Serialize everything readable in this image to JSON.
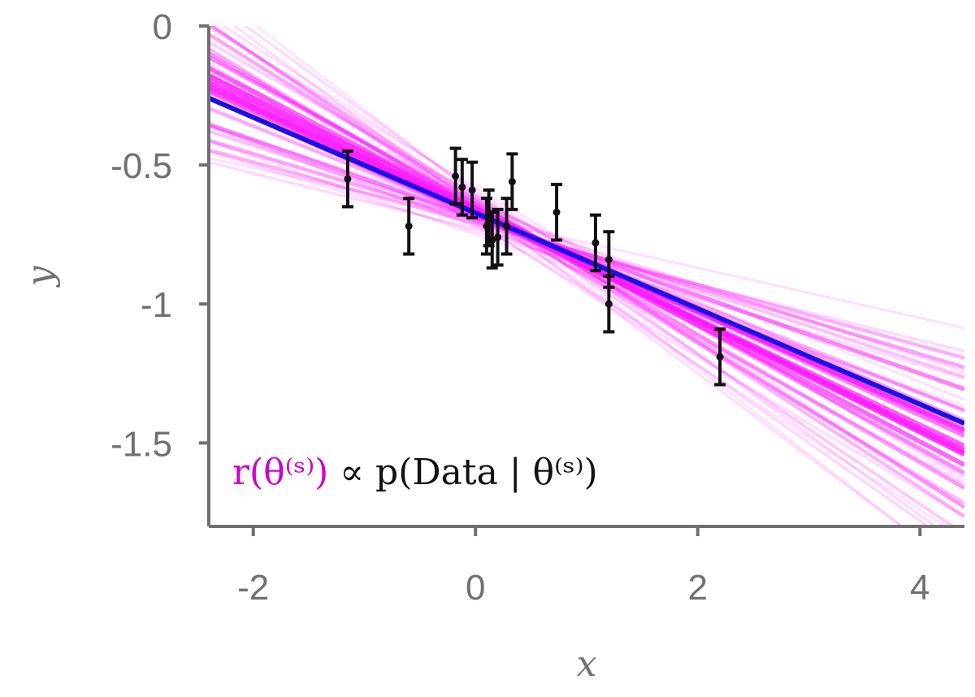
{
  "chart_data": {
    "type": "scatter",
    "xlabel": "x",
    "ylabel": "y",
    "xlim": [
      -2.4,
      4.4
    ],
    "ylim": [
      -1.8,
      0
    ],
    "xticks": [
      -2,
      0,
      2,
      4
    ],
    "yticks": [
      0,
      -0.5,
      -1,
      -1.5
    ],
    "xtick_labels": [
      "-2",
      "0",
      "2",
      "4"
    ],
    "ytick_labels": [
      "0",
      "-0.5",
      "-1",
      "-1.5"
    ],
    "grid": false,
    "annotation": {
      "r_part": "r(θ⁽ˢ⁾)",
      "rest_part": " ∝ p(Data | θ⁽ˢ⁾)"
    },
    "points": [
      {
        "x": -1.15,
        "y": -0.55,
        "err": 0.1
      },
      {
        "x": -0.6,
        "y": -0.72,
        "err": 0.1
      },
      {
        "x": -0.18,
        "y": -0.54,
        "err": 0.1
      },
      {
        "x": -0.12,
        "y": -0.58,
        "err": 0.1
      },
      {
        "x": -0.03,
        "y": -0.59,
        "err": 0.1
      },
      {
        "x": 0.1,
        "y": -0.72,
        "err": 0.1
      },
      {
        "x": 0.12,
        "y": -0.69,
        "err": 0.1
      },
      {
        "x": 0.15,
        "y": -0.77,
        "err": 0.1
      },
      {
        "x": 0.2,
        "y": -0.76,
        "err": 0.1
      },
      {
        "x": 0.28,
        "y": -0.72,
        "err": 0.1
      },
      {
        "x": 0.33,
        "y": -0.56,
        "err": 0.1
      },
      {
        "x": 0.73,
        "y": -0.67,
        "err": 0.1
      },
      {
        "x": 1.08,
        "y": -0.78,
        "err": 0.1
      },
      {
        "x": 1.2,
        "y": -0.84,
        "err": 0.1
      },
      {
        "x": 1.2,
        "y": -1.0,
        "err": 0.1
      },
      {
        "x": 2.2,
        "y": -1.19,
        "err": 0.1
      }
    ],
    "fit_line": {
      "color": "#1a10e6",
      "intercept": -0.6725,
      "slope": -0.1721
    },
    "sample_lines": {
      "color": "#ff1aff",
      "lines": [
        {
          "intercept": -0.66,
          "slope": -0.2,
          "weight": 0.9
        },
        {
          "intercept": -0.67,
          "slope": -0.195,
          "weight": 0.85
        },
        {
          "intercept": -0.665,
          "slope": -0.18,
          "weight": 0.8
        },
        {
          "intercept": -0.675,
          "slope": -0.19,
          "weight": 0.75
        },
        {
          "intercept": -0.655,
          "slope": -0.21,
          "weight": 0.7
        },
        {
          "intercept": -0.68,
          "slope": -0.175,
          "weight": 0.65
        },
        {
          "intercept": -0.66,
          "slope": -0.185,
          "weight": 0.6
        },
        {
          "intercept": -0.69,
          "slope": -0.14,
          "weight": 0.55
        },
        {
          "intercept": -0.64,
          "slope": -0.22,
          "weight": 0.5
        },
        {
          "intercept": -0.65,
          "slope": -0.23,
          "weight": 0.45
        },
        {
          "intercept": -0.7,
          "slope": -0.12,
          "weight": 0.4
        },
        {
          "intercept": -0.63,
          "slope": -0.25,
          "weight": 0.38
        },
        {
          "intercept": -0.68,
          "slope": -0.16,
          "weight": 0.36
        },
        {
          "intercept": -0.71,
          "slope": -0.11,
          "weight": 0.33
        },
        {
          "intercept": -0.62,
          "slope": -0.26,
          "weight": 0.3
        },
        {
          "intercept": -0.67,
          "slope": -0.17,
          "weight": 0.28
        },
        {
          "intercept": -0.66,
          "slope": -0.24,
          "weight": 0.26
        },
        {
          "intercept": -0.69,
          "slope": -0.13,
          "weight": 0.24
        },
        {
          "intercept": -0.65,
          "slope": -0.2,
          "weight": 0.22
        },
        {
          "intercept": -0.64,
          "slope": -0.27,
          "weight": 0.2
        },
        {
          "intercept": -0.72,
          "slope": -0.15,
          "weight": 0.18
        },
        {
          "intercept": -0.61,
          "slope": -0.23,
          "weight": 0.16
        },
        {
          "intercept": -0.7,
          "slope": -0.19,
          "weight": 0.15
        },
        {
          "intercept": -0.63,
          "slope": -0.18,
          "weight": 0.14
        },
        {
          "intercept": -0.68,
          "slope": -0.22,
          "weight": 0.13
        },
        {
          "intercept": -0.66,
          "slope": -0.28,
          "weight": 0.12
        },
        {
          "intercept": -0.73,
          "slope": -0.1,
          "weight": 0.11
        },
        {
          "intercept": -0.6,
          "slope": -0.29,
          "weight": 0.1
        },
        {
          "intercept": -0.67,
          "slope": -0.13,
          "weight": 0.1
        },
        {
          "intercept": -0.62,
          "slope": -0.21,
          "weight": 0.09
        },
        {
          "intercept": -0.71,
          "slope": -0.24,
          "weight": 0.09
        },
        {
          "intercept": -0.65,
          "slope": -0.3,
          "weight": 0.08
        },
        {
          "intercept": -0.74,
          "slope": -0.12,
          "weight": 0.08
        },
        {
          "intercept": -0.59,
          "slope": -0.26,
          "weight": 0.07
        },
        {
          "intercept": -0.69,
          "slope": -0.09,
          "weight": 0.07
        },
        {
          "intercept": -0.64,
          "slope": -0.16,
          "weight": 0.06
        },
        {
          "intercept": -0.7,
          "slope": -0.26,
          "weight": 0.06
        },
        {
          "intercept": -0.61,
          "slope": -0.31,
          "weight": 0.05
        },
        {
          "intercept": -0.75,
          "slope": -0.14,
          "weight": 0.05
        },
        {
          "intercept": -0.58,
          "slope": -0.24,
          "weight": 0.05
        }
      ]
    }
  }
}
